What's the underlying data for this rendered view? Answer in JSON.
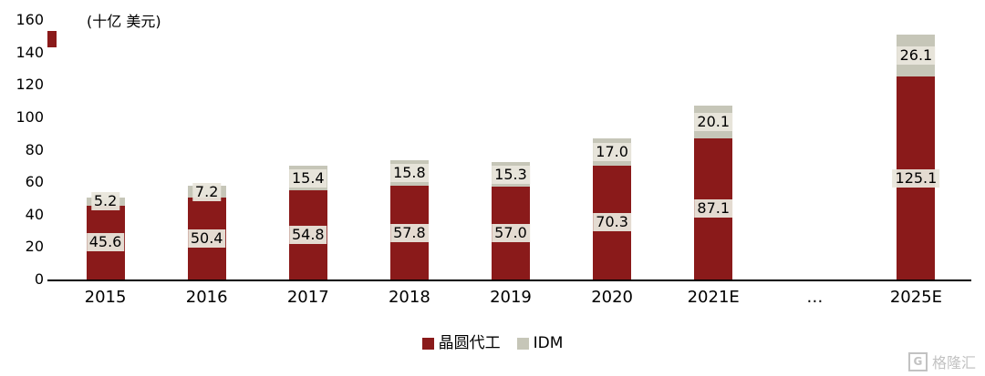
{
  "unit_label": "(十亿 美元)",
  "colors": {
    "foundry": "#8A1A1A",
    "idm": "#C6C6B8",
    "label_bg": "#E9E6DB",
    "axis": "#000000",
    "watermark": "#C2C2C2"
  },
  "legend": {
    "items": [
      {
        "label": "晶圆代工",
        "color": "#8A1A1A"
      },
      {
        "label": "IDM",
        "color": "#C6C6B8"
      }
    ]
  },
  "watermark": {
    "text": "格隆汇",
    "icon": "G"
  },
  "chart_data": {
    "type": "bar",
    "stacked": true,
    "title": "",
    "ylabel": "(十亿 美元)",
    "xlabel": "",
    "ylim": [
      0,
      160
    ],
    "yticks": [
      0,
      20,
      40,
      60,
      80,
      100,
      120,
      140,
      160
    ],
    "grid": false,
    "legend_position": "bottom",
    "categories": [
      "2015",
      "2016",
      "2017",
      "2018",
      "2019",
      "2020",
      "2021E",
      "…",
      "2025E"
    ],
    "series": [
      {
        "name": "晶圆代工",
        "color": "#8A1A1A",
        "values": [
          45.6,
          50.4,
          54.8,
          57.8,
          57.0,
          70.3,
          87.1,
          null,
          125.1
        ]
      },
      {
        "name": "IDM",
        "color": "#C6C6B8",
        "values": [
          5.2,
          7.2,
          15.4,
          15.8,
          15.3,
          17.0,
          20.1,
          null,
          26.1
        ]
      }
    ]
  }
}
